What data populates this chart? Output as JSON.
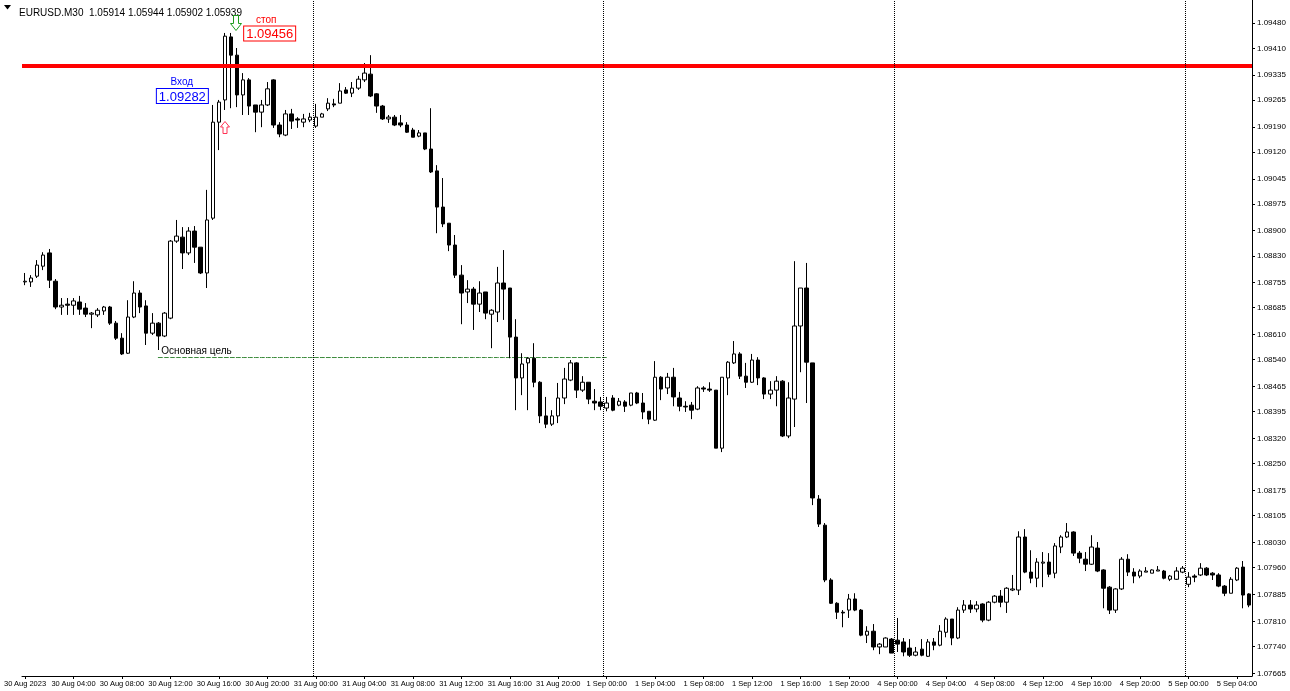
{
  "chart_data": {
    "type": "candlestick",
    "title": "EURUSD.M30  1.05914 1.05944 1.05902 1.05939",
    "categories": [
      "30 Aug 2023",
      null,
      null,
      null,
      null,
      null,
      null,
      null,
      "30 Aug 04:00",
      null,
      null,
      null,
      null,
      null,
      null,
      null,
      "30 Aug 08:00",
      null,
      null,
      null,
      null,
      null,
      null,
      null,
      "30 Aug 12:00",
      null,
      null,
      null,
      null,
      null,
      null,
      null,
      "30 Aug 16:00",
      null,
      null,
      null,
      null,
      null,
      null,
      null,
      "30 Aug 20:00",
      null,
      null,
      null,
      null,
      null,
      null,
      null,
      "31 Aug 00:00",
      null,
      null,
      null,
      null,
      null,
      null,
      null,
      "31 Aug 04:00",
      null,
      null,
      null,
      null,
      null,
      null,
      null,
      "31 Aug 08:00",
      null,
      null,
      null,
      null,
      null,
      null,
      null,
      "31 Aug 12:00",
      null,
      null,
      null,
      null,
      null,
      null,
      null,
      "31 Aug 16:00",
      null,
      null,
      null,
      null,
      null,
      null,
      null,
      "31 Aug 20:00",
      null,
      null,
      null,
      null,
      null,
      null,
      null,
      "1 Sep 00:00",
      null,
      null,
      null,
      null,
      null,
      null,
      null,
      "1 Sep 04:00",
      null,
      null,
      null,
      null,
      null,
      null,
      null,
      "1 Sep 08:00",
      null,
      null,
      null,
      null,
      null,
      null,
      null,
      "1 Sep 12:00",
      null,
      null,
      null,
      null,
      null,
      null,
      null,
      "1 Sep 16:00",
      null,
      null,
      null,
      null,
      null,
      null,
      null,
      "1 Sep 20:00",
      null,
      null,
      null,
      null,
      null,
      null,
      null,
      "4 Sep 00:00",
      null,
      null,
      null,
      null,
      null,
      null,
      null,
      "4 Sep 04:00",
      null,
      null,
      null,
      null,
      null,
      null,
      null,
      "4 Sep 08:00",
      null,
      null,
      null,
      null,
      null,
      null,
      null,
      "4 Sep 12:00",
      null,
      null,
      null,
      null,
      null,
      null,
      null,
      "4 Sep 16:00",
      null,
      null,
      null,
      null,
      null,
      null,
      null,
      "4 Sep 20:00",
      null,
      null,
      null,
      null,
      null,
      null,
      null,
      "5 Sep 00:00",
      null,
      null,
      null,
      null,
      null,
      null,
      null,
      "5 Sep 04:00",
      null,
      null
    ],
    "series": [
      {
        "type": "candlestick",
        "color": "#000000",
        "ohlc": [
          [
            1.08757,
            1.08782,
            1.08748,
            1.08759
          ],
          [
            1.08757,
            1.08776,
            1.08743,
            1.08768
          ],
          [
            1.08773,
            1.08818,
            1.08768,
            1.08804
          ],
          [
            1.08801,
            1.0884,
            1.0879,
            1.08832
          ],
          [
            1.08838,
            1.08849,
            1.0874,
            1.08762
          ],
          [
            1.08759,
            1.08765,
            1.08681,
            1.08687
          ],
          [
            1.08687,
            1.08712,
            1.08665,
            1.08692
          ],
          [
            1.08695,
            1.08712,
            1.08665,
            1.08692
          ],
          [
            1.08692,
            1.08712,
            1.08665,
            1.08704
          ],
          [
            1.08701,
            1.08718,
            1.08665,
            1.08681
          ],
          [
            1.08684,
            1.08698,
            1.08659,
            1.08667
          ],
          [
            1.08667,
            1.08673,
            1.08628,
            1.0867
          ],
          [
            1.08665,
            1.08684,
            1.08659,
            1.08678
          ],
          [
            1.08676,
            1.0869,
            1.08665,
            1.08687
          ],
          [
            1.08687,
            1.0869,
            1.08637,
            1.08642
          ],
          [
            1.08642,
            1.08648,
            1.08595,
            1.086
          ],
          [
            1.086,
            1.08614,
            1.08553,
            1.08556
          ],
          [
            1.08558,
            1.08706,
            1.08556,
            1.08659
          ],
          [
            1.08659,
            1.08759,
            1.08656,
            1.08726
          ],
          [
            1.08726,
            1.08734,
            1.0867,
            1.08687
          ],
          [
            1.0869,
            1.08706,
            1.08581,
            1.08614
          ],
          [
            1.08614,
            1.0867,
            1.08609,
            1.08642
          ],
          [
            1.08642,
            1.08645,
            1.08567,
            1.08606
          ],
          [
            1.08606,
            1.08673,
            1.08603,
            1.0867
          ],
          [
            1.08656,
            1.08874,
            1.08653,
            1.08871
          ],
          [
            1.08871,
            1.0893,
            1.08866,
            1.08885
          ],
          [
            1.08882,
            1.0891,
            1.08793,
            1.08838
          ],
          [
            1.08838,
            1.0891,
            1.08832,
            1.08899
          ],
          [
            1.08899,
            1.08913,
            1.0881,
            1.08854
          ],
          [
            1.08854,
            1.08854,
            1.08779,
            1.08782
          ],
          [
            1.08782,
            1.09014,
            1.0874,
            1.0893
          ],
          [
            1.08935,
            1.09251,
            1.0893,
            1.09203
          ],
          [
            1.09203,
            1.09265,
            1.09125,
            1.09259
          ],
          [
            1.09265,
            1.09452,
            1.09237,
            1.09443
          ],
          [
            1.09441,
            1.09452,
            1.09242,
            1.0939
          ],
          [
            1.0939,
            1.0941,
            1.09245,
            1.09279
          ],
          [
            1.09279,
            1.0934,
            1.09223,
            1.09321
          ],
          [
            1.09321,
            1.09326,
            1.09223,
            1.09248
          ],
          [
            1.09251,
            1.09251,
            1.09175,
            1.09231
          ],
          [
            1.09231,
            1.09265,
            1.09189,
            1.09251
          ],
          [
            1.09251,
            1.09315,
            1.09248,
            1.09296
          ],
          [
            1.09321,
            1.09323,
            1.09187,
            1.09195
          ],
          [
            1.09195,
            1.09203,
            1.09161,
            1.0917
          ],
          [
            1.09167,
            1.09237,
            1.09164,
            1.09226
          ],
          [
            1.09226,
            1.0924,
            1.09184,
            1.09206
          ],
          [
            1.09212,
            1.09217,
            1.09187,
            1.09209
          ],
          [
            1.09203,
            1.09226,
            1.09189,
            1.09212
          ],
          [
            1.09209,
            1.09229,
            1.09203,
            1.09217
          ],
          [
            1.09192,
            1.09254,
            1.09187,
            1.09217
          ],
          [
            1.09217,
            1.09229,
            1.09217,
            1.09226
          ],
          [
            1.0924,
            1.0927,
            1.09234,
            1.09256
          ],
          [
            1.09254,
            1.09268,
            1.09245,
            1.09251
          ],
          [
            1.09256,
            1.09312,
            1.09256,
            1.0929
          ],
          [
            1.09293,
            1.09301,
            1.09282,
            1.09284
          ],
          [
            1.09284,
            1.09315,
            1.09273,
            1.09298
          ],
          [
            1.09298,
            1.09332,
            1.09293,
            1.09323
          ],
          [
            1.09321,
            1.09368,
            1.09315,
            1.0934
          ],
          [
            1.09337,
            1.0939,
            1.09273,
            1.09276
          ],
          [
            1.09282,
            1.09284,
            1.09229,
            1.09248
          ],
          [
            1.09248,
            1.09251,
            1.09209,
            1.09212
          ],
          [
            1.09212,
            1.09223,
            1.09201,
            1.09217
          ],
          [
            1.09217,
            1.09223,
            1.09192,
            1.09195
          ],
          [
            1.09201,
            1.09223,
            1.09189,
            1.09195
          ],
          [
            1.09195,
            1.09203,
            1.09173,
            1.09175
          ],
          [
            1.09181,
            1.09187,
            1.09161,
            1.09161
          ],
          [
            1.09164,
            1.09181,
            1.09161,
            1.09173
          ],
          [
            1.09173,
            1.09173,
            1.09125,
            1.09128
          ],
          [
            1.09128,
            1.09242,
            1.09061,
            1.09064
          ],
          [
            1.09067,
            1.09083,
            1.08893,
            1.08966
          ],
          [
            1.08966,
            1.09047,
            1.0891,
            1.08919
          ],
          [
            1.08921,
            1.08921,
            1.08843,
            1.0886
          ],
          [
            1.0886,
            1.08888,
            1.08768,
            1.08776
          ],
          [
            1.08776,
            1.08804,
            1.08639,
            1.08726
          ],
          [
            1.08729,
            1.08762,
            1.08698,
            1.08737
          ],
          [
            1.08737,
            1.08743,
            1.08623,
            1.08695
          ],
          [
            1.08695,
            1.08759,
            1.08673,
            1.08726
          ],
          [
            1.08729,
            1.08729,
            1.08653,
            1.0867
          ],
          [
            1.08667,
            1.08681,
            1.08572,
            1.08678
          ],
          [
            1.08673,
            1.08799,
            1.08645,
            1.08754
          ],
          [
            1.08754,
            1.08846,
            1.08651,
            1.08737
          ],
          [
            1.0874,
            1.0874,
            1.08544,
            1.08603
          ],
          [
            1.08603,
            1.08653,
            1.08399,
            1.08489
          ],
          [
            1.08489,
            1.08558,
            1.08441,
            1.08528
          ],
          [
            1.08531,
            1.08547,
            1.08399,
            1.08544
          ],
          [
            1.08544,
            1.08586,
            1.08463,
            1.08477
          ],
          [
            1.08477,
            1.0848,
            1.08363,
            1.08383
          ],
          [
            1.08383,
            1.08436,
            1.08349,
            1.0836
          ],
          [
            1.0836,
            1.08399,
            1.08355,
            1.08383
          ],
          [
            1.08383,
            1.08475,
            1.08363,
            1.08433
          ],
          [
            1.08433,
            1.08517,
            1.08416,
            1.08486
          ],
          [
            1.08483,
            1.08539,
            1.0848,
            1.08531
          ],
          [
            1.08531,
            1.08533,
            1.08433,
            1.08455
          ],
          [
            1.08455,
            1.08494,
            1.0845,
            1.08477
          ],
          [
            1.08477,
            1.08477,
            1.08416,
            1.0843
          ],
          [
            1.08424,
            1.08458,
            1.08399,
            1.08419
          ],
          [
            1.08422,
            1.08436,
            1.08399,
            1.0841
          ],
          [
            1.08405,
            1.08436,
            1.08396,
            1.08419
          ],
          [
            1.08433,
            1.08441,
            1.08396,
            1.08399
          ],
          [
            1.08413,
            1.08433,
            1.0841,
            1.08424
          ],
          [
            1.08422,
            1.08427,
            1.08394,
            1.0841
          ],
          [
            1.08413,
            1.08447,
            1.0841,
            1.08447
          ],
          [
            1.08447,
            1.0845,
            1.08416,
            1.08419
          ],
          [
            1.08419,
            1.08447,
            1.08374,
            1.08394
          ],
          [
            1.08396,
            1.08396,
            1.0836,
            1.08374
          ],
          [
            1.08371,
            1.08536,
            1.08369,
            1.08491
          ],
          [
            1.08491,
            1.08494,
            1.08427,
            1.08458
          ],
          [
            1.08461,
            1.08503,
            1.08444,
            1.08491
          ],
          [
            1.08491,
            1.08517,
            1.0841,
            1.08436
          ],
          [
            1.08433,
            1.0845,
            1.08396,
            1.0841
          ],
          [
            1.0841,
            1.08424,
            1.08394,
            1.08408
          ],
          [
            1.08413,
            1.08422,
            1.08374,
            1.08399
          ],
          [
            1.08402,
            1.08466,
            1.08399,
            1.08461
          ],
          [
            1.08461,
            1.08466,
            1.0845,
            1.08458
          ],
          [
            1.08458,
            1.08477,
            1.0845,
            1.08455
          ],
          [
            1.08455,
            1.08455,
            1.08293,
            1.08293
          ],
          [
            1.08293,
            1.08491,
            1.08282,
            1.08491
          ],
          [
            1.08489,
            1.08536,
            1.08441,
            1.08533
          ],
          [
            1.08531,
            1.08592,
            1.08528,
            1.08556
          ],
          [
            1.08556,
            1.08561,
            1.08486,
            1.08494
          ],
          [
            1.08494,
            1.08531,
            1.08461,
            1.08477
          ],
          [
            1.08477,
            1.08556,
            1.08475,
            1.08539
          ],
          [
            1.08539,
            1.08547,
            1.08469,
            1.08489
          ],
          [
            1.08489,
            1.08491,
            1.0843,
            1.08444
          ],
          [
            1.08444,
            1.0848,
            1.0843,
            1.08455
          ],
          [
            1.08455,
            1.08494,
            1.0841,
            1.0848
          ],
          [
            1.0848,
            1.08483,
            1.08324,
            1.08327
          ],
          [
            1.08327,
            1.08477,
            1.08321,
            1.08433
          ],
          [
            1.0843,
            1.08815,
            1.08352,
            1.08634
          ],
          [
            1.08634,
            1.0874,
            1.08505,
            1.0874
          ],
          [
            1.0874,
            1.0881,
            1.08419,
            1.08533
          ],
          [
            1.08531,
            1.08531,
            1.08134,
            1.08154
          ],
          [
            1.08151,
            1.08162,
            1.08073,
            1.08081
          ],
          [
            1.08078,
            1.08084,
            1.07919,
            1.07925
          ],
          [
            1.07925,
            1.0793,
            1.07858,
            1.0786
          ],
          [
            1.0786,
            1.07863,
            1.07816,
            1.07835
          ],
          [
            1.07835,
            1.07841,
            1.07793,
            1.07833
          ],
          [
            1.07841,
            1.07886,
            1.07819,
            1.07872
          ],
          [
            1.07872,
            1.07888,
            1.07838,
            1.07841
          ],
          [
            1.07841,
            1.07844,
            1.07768,
            1.07771
          ],
          [
            1.07771,
            1.07796,
            1.07749,
            1.07782
          ],
          [
            1.07782,
            1.07802,
            1.07729,
            1.07738
          ],
          [
            1.07738,
            1.07749,
            1.07718,
            1.07746
          ],
          [
            1.07738,
            1.07765,
            1.07738,
            1.07763
          ],
          [
            1.0776,
            1.07763,
            1.07721,
            1.07721
          ],
          [
            1.07757,
            1.07819,
            1.07724,
            1.07746
          ],
          [
            1.07752,
            1.07763,
            1.07712,
            1.07724
          ],
          [
            1.07735,
            1.0776,
            1.0771,
            1.07715
          ],
          [
            1.07715,
            1.07738,
            1.07712,
            1.07724
          ],
          [
            1.07732,
            1.0776,
            1.07712,
            1.07715
          ],
          [
            1.07712,
            1.0776,
            1.0771,
            1.07752
          ],
          [
            1.07752,
            1.07763,
            1.07729,
            1.07743
          ],
          [
            1.07743,
            1.07799,
            1.0774,
            1.07782
          ],
          [
            1.07779,
            1.07821,
            1.07765,
            1.07816
          ],
          [
            1.07816,
            1.07816,
            1.07743,
            1.07763
          ],
          [
            1.07763,
            1.07849,
            1.0776,
            1.07841
          ],
          [
            1.07841,
            1.07869,
            1.07833,
            1.07855
          ],
          [
            1.07855,
            1.07869,
            1.07833,
            1.07844
          ],
          [
            1.07844,
            1.07866,
            1.07835,
            1.07855
          ],
          [
            1.07858,
            1.0786,
            1.07807,
            1.07813
          ],
          [
            1.07813,
            1.07866,
            1.0781,
            1.07863
          ],
          [
            1.07863,
            1.07883,
            1.0786,
            1.0788
          ],
          [
            1.0788,
            1.07897,
            1.07849,
            1.07863
          ],
          [
            1.07863,
            1.07905,
            1.07833,
            1.07902
          ],
          [
            1.07897,
            1.07939,
            1.07894,
            1.079
          ],
          [
            1.07897,
            1.08061,
            1.07883,
            1.08045
          ],
          [
            1.08045,
            1.08067,
            1.07944,
            1.07947
          ],
          [
            1.07947,
            1.08008,
            1.07916,
            1.0793
          ],
          [
            1.0793,
            1.07986,
            1.07905,
            1.07975
          ],
          [
            1.07972,
            1.08003,
            1.07905,
            1.07975
          ],
          [
            1.07975,
            1.08,
            1.07933,
            1.07941
          ],
          [
            1.07944,
            1.08028,
            1.0793,
            1.0802
          ],
          [
            1.08017,
            1.0805,
            1.08,
            1.08045
          ],
          [
            1.08045,
            1.08084,
            1.08042,
            1.08059
          ],
          [
            1.08059,
            1.08061,
            1.07992,
            1.08
          ],
          [
            1.08,
            1.08006,
            1.07972,
            1.07986
          ],
          [
            1.07983,
            1.08003,
            1.0795,
            1.07969
          ],
          [
            1.07969,
            1.0805,
            1.07967,
            1.08017
          ],
          [
            1.08014,
            1.08031,
            1.07947,
            1.0795
          ],
          [
            1.07953,
            1.07955,
            1.07846,
            1.07902
          ],
          [
            1.07905,
            1.07908,
            1.0783,
            1.07841
          ],
          [
            1.07841,
            1.07902,
            1.07833,
            1.079
          ],
          [
            1.079,
            1.07989,
            1.07897,
            1.07983
          ],
          [
            1.07983,
            1.07997,
            1.07936,
            1.07947
          ],
          [
            1.07947,
            1.07958,
            1.07916,
            1.07936
          ],
          [
            1.07936,
            1.07955,
            1.0793,
            1.0795
          ],
          [
            1.07947,
            1.07961,
            1.07947,
            1.0795
          ],
          [
            1.07944,
            1.07955,
            1.07944,
            1.07953
          ],
          [
            1.0795,
            1.07964,
            1.0795,
            1.07953
          ],
          [
            1.0795,
            1.07953,
            1.07927,
            1.0793
          ],
          [
            1.07927,
            1.07939,
            1.07922,
            1.07936
          ],
          [
            1.07927,
            1.07961,
            1.07925,
            1.0795
          ],
          [
            1.07947,
            1.07964,
            1.07944,
            1.07958
          ],
          [
            1.07913,
            1.07947,
            1.07905,
            1.07933
          ],
          [
            1.07936,
            1.07941,
            1.07919,
            1.07933
          ],
          [
            1.07939,
            1.07972,
            1.07936,
            1.07958
          ],
          [
            1.07958,
            1.07961,
            1.07936,
            1.07939
          ],
          [
            1.07944,
            1.07947,
            1.07925,
            1.07939
          ],
          [
            1.07939,
            1.07944,
            1.07905,
            1.07908
          ],
          [
            1.07908,
            1.07911,
            1.0788,
            1.07888
          ],
          [
            1.07888,
            1.07933,
            1.07888,
            1.07927
          ],
          [
            1.07925,
            1.07961,
            1.07922,
            1.07958
          ],
          [
            1.07961,
            1.07978,
            1.07846,
            1.07883
          ],
          [
            1.07886,
            1.07888,
            1.07849,
            1.07855
          ]
        ]
      },
      {
        "type": "line",
        "name": "Основная цель",
        "color": "#3a8a3a",
        "line_style": "dashed",
        "marker": "none",
        "values": [
          null,
          null,
          null,
          null,
          null,
          null,
          null,
          null,
          null,
          null,
          null,
          null,
          null,
          null,
          null,
          null,
          null,
          null,
          null,
          null,
          null,
          null,
          1.08546,
          1.08546,
          1.08546,
          1.08546,
          1.08546,
          1.08546,
          1.08546,
          1.08546,
          1.08546,
          1.08546,
          1.08546,
          1.08546,
          1.08546,
          1.08546,
          1.08546,
          1.08546,
          1.08546,
          1.08546,
          1.08546,
          1.08546,
          1.08546,
          1.08546,
          1.08546,
          1.08546,
          1.08546,
          1.08546,
          1.08546,
          1.08546,
          1.08546,
          1.08546,
          1.08546,
          1.08546,
          1.08546,
          1.08546,
          1.08546,
          1.08546,
          1.08546,
          1.08546,
          1.08546,
          1.08546,
          1.08546,
          1.08546,
          1.08546,
          1.08546,
          1.08546,
          1.08546,
          1.08546,
          1.08546,
          1.08546,
          1.08546,
          1.08546,
          1.08546,
          1.08546,
          1.08546,
          1.08546,
          1.08546,
          1.08546,
          1.08546,
          1.08546,
          1.08546,
          1.08546,
          1.08546,
          1.08546,
          1.08546,
          1.08546,
          1.08546,
          1.08546,
          1.08546,
          1.08546,
          1.08546,
          1.08546,
          1.08546,
          1.08546,
          1.08546,
          1.08546,
          null,
          null,
          null,
          null,
          null,
          null,
          null,
          null,
          null,
          null,
          null,
          null,
          null,
          null,
          null,
          null,
          null,
          null,
          null,
          null,
          null,
          null,
          null,
          null,
          null,
          null,
          null,
          null,
          null,
          null,
          null,
          null,
          null,
          null,
          null,
          null,
          null,
          null,
          null,
          null,
          null,
          null,
          null,
          null,
          null,
          null,
          null,
          null,
          null,
          null,
          null,
          null,
          null,
          null,
          null,
          null,
          null,
          null,
          null,
          null,
          null,
          null,
          null,
          null,
          null,
          null,
          null,
          null,
          null,
          null,
          null,
          null,
          null,
          null,
          null,
          null,
          null,
          null,
          null,
          null,
          null,
          null,
          null,
          null,
          null,
          null,
          null,
          null,
          null,
          null,
          null,
          null,
          null,
          null,
          null,
          null,
          null,
          null,
          null,
          null,
          null,
          null,
          null,
          null,
          null,
          null
        ]
      }
    ],
    "ylim": [
      1.07657,
      1.09544
    ],
    "yticks": [
      1.07665,
      {
        "value": 1.0774,
        "label": "1.07740"
      },
      {
        "value": 1.0781,
        "label": "1.07810"
      },
      1.07885,
      {
        "value": 1.0796,
        "label": "1.07960"
      },
      {
        "value": 1.0803,
        "label": "1.08030"
      },
      1.08105,
      1.08175,
      {
        "value": 1.0825,
        "label": "1.08250"
      },
      {
        "value": 1.0832,
        "label": "1.08320"
      },
      1.08395,
      1.08465,
      {
        "value": 1.0854,
        "label": "1.08540"
      },
      {
        "value": 1.0861,
        "label": "1.08610"
      },
      1.08685,
      1.08755,
      {
        "value": 1.0883,
        "label": "1.08830"
      },
      {
        "value": 1.089,
        "label": "1.08900"
      },
      1.08975,
      1.09045,
      {
        "value": 1.0912,
        "label": "1.09120"
      },
      {
        "value": 1.0919,
        "label": "1.09190"
      },
      1.09265,
      1.09335,
      {
        "value": 1.0941,
        "label": "1.09410"
      },
      {
        "value": 1.0948,
        "label": "1.09480"
      }
    ],
    "ref_lines": [
      {
        "axis": "y",
        "value": 1.09361,
        "color": "#ff0000",
        "line_style": "solid"
      },
      {
        "axis": "x",
        "value": "31 Aug 00:00",
        "color": "#000000",
        "line_style": "dotted"
      },
      {
        "axis": "x",
        "value": "1 Sep 00:00",
        "color": "#000000",
        "line_style": "dotted"
      },
      {
        "axis": "x",
        "value": "4 Sep 00:00",
        "color": "#000000",
        "line_style": "dotted"
      },
      {
        "axis": "x",
        "value": "5 Sep 00:00",
        "color": "#000000",
        "line_style": "dotted"
      }
    ],
    "annotations": [
      "стоп",
      "1.09456",
      "Вход",
      "1.09282"
    ]
  }
}
